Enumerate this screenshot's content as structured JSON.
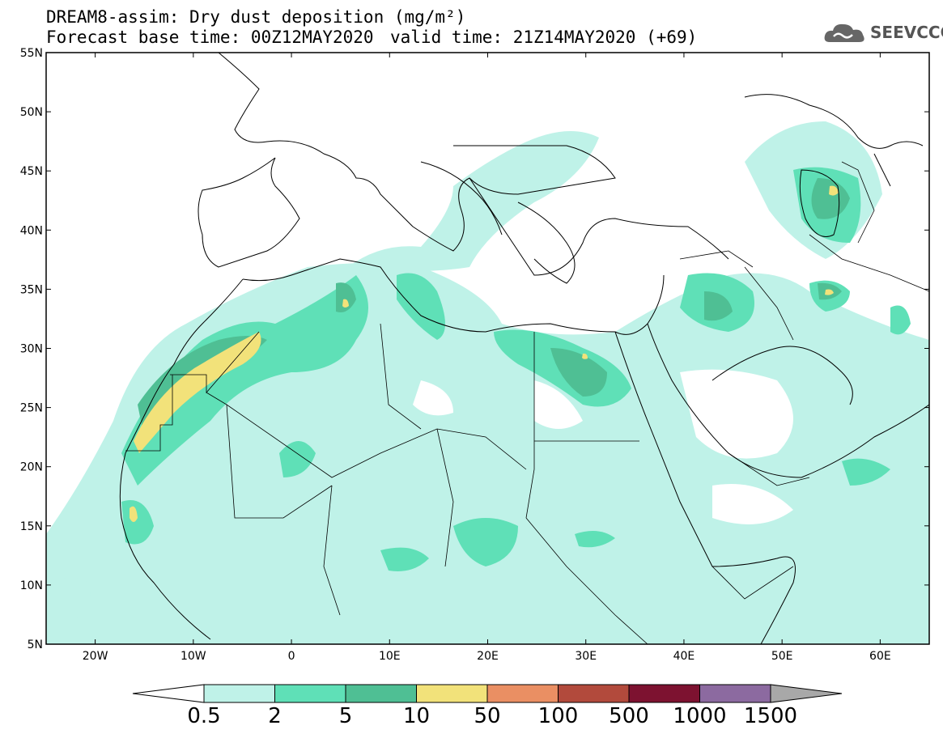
{
  "header": {
    "title": "DREAM8-assim: Dry dust deposition (mg/m²)",
    "base_time": "Forecast base time: 00Z12MAY2020",
    "valid_time": "valid time: 21Z14MAY2020 (+69)",
    "logo_text": "SEEVCCC",
    "logo_icon": "cloud-logo-icon"
  },
  "map": {
    "lon_range": [
      -25,
      65
    ],
    "lat_range": [
      5,
      55
    ],
    "lon_labels": [
      "20W",
      "10W",
      "0",
      "10E",
      "20E",
      "30E",
      "40E",
      "50E",
      "60E"
    ],
    "lon_values": [
      -20,
      -10,
      0,
      10,
      20,
      30,
      40,
      50,
      60
    ],
    "lat_labels": [
      "55N",
      "50N",
      "45N",
      "40N",
      "35N",
      "30N",
      "25N",
      "20N",
      "15N",
      "10N",
      "5N"
    ],
    "lat_values": [
      55,
      50,
      45,
      40,
      35,
      30,
      25,
      20,
      15,
      10,
      5
    ],
    "background": "#ffffff",
    "border_color": "#000000"
  },
  "colorbar": {
    "labels": [
      "0.5",
      "2",
      "5",
      "10",
      "50",
      "100",
      "500",
      "1000",
      "1500"
    ],
    "colors": [
      "#bff2e8",
      "#5fe0b7",
      "#4fbf94",
      "#f2e27a",
      "#ea8f63",
      "#b24a3c",
      "#7d1230",
      "#8c6aa0"
    ],
    "under_color": "#ffffff",
    "over_color": "#a8a8a8"
  },
  "dust_regions": [
    {
      "name": "atlantic-sahara-band",
      "level": "0.5",
      "color": "#bff2e8"
    },
    {
      "name": "morocco-coast",
      "level": "2",
      "color": "#5fe0b7"
    },
    {
      "name": "western-sahara-core",
      "level": "10",
      "color": "#f2e27a"
    },
    {
      "name": "egypt-desert",
      "level": "5",
      "color": "#4fbf94"
    },
    {
      "name": "iraq-plume",
      "level": "5",
      "color": "#4fbf94"
    },
    {
      "name": "aral-caspian",
      "level": "5",
      "color": "#4fbf94"
    },
    {
      "name": "iran-dasht",
      "level": "5",
      "color": "#4fbf94"
    },
    {
      "name": "sahel-band",
      "level": "2",
      "color": "#5fe0b7"
    }
  ]
}
